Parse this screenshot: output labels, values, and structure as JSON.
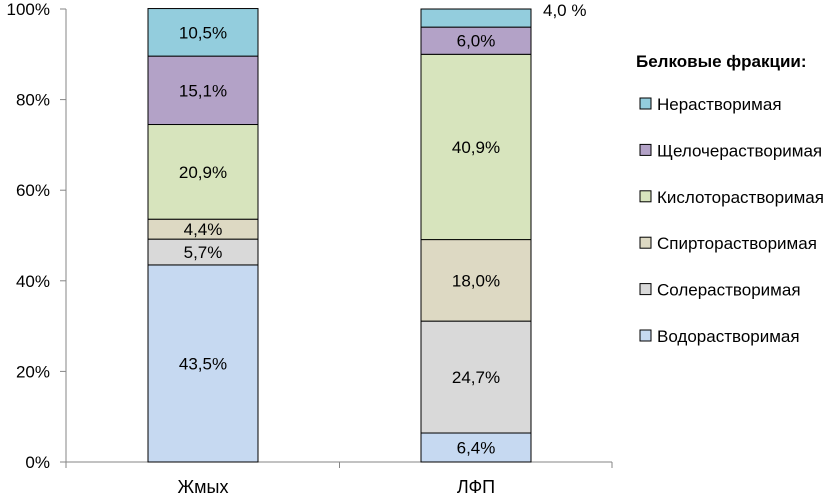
{
  "chart_data": {
    "type": "stacked-bar-100",
    "title": "",
    "xlabel": "",
    "ylabel": "",
    "ylim": [
      0,
      100
    ],
    "y_ticks": [
      "0%",
      "20%",
      "40%",
      "60%",
      "80%",
      "100%"
    ],
    "categories": [
      "Жмых",
      "ЛФП"
    ],
    "legend_title": "Белковые фракции:",
    "series": [
      {
        "name": "Водорастворимая",
        "values": [
          43.5,
          6.4
        ],
        "labels": [
          "43,5%",
          "6,4%"
        ],
        "color": "#c6d9f1"
      },
      {
        "name": "Солерастворимая",
        "values": [
          5.7,
          24.7
        ],
        "labels": [
          "5,7%",
          "24,7%"
        ],
        "color": "#d9d9d9"
      },
      {
        "name": "Спирторастворимая",
        "values": [
          4.4,
          18.0
        ],
        "labels": [
          "4,4%",
          "18,0%"
        ],
        "color": "#ddd9c3"
      },
      {
        "name": "Кислоторастворимая",
        "values": [
          20.9,
          40.9
        ],
        "labels": [
          "20,9%",
          "40,9%"
        ],
        "color": "#d7e4bd"
      },
      {
        "name": "Щелочерастворимая",
        "values": [
          15.1,
          6.0
        ],
        "labels": [
          "15,1%",
          "6,0%"
        ],
        "color": "#b3a2c7"
      },
      {
        "name": "Нерастворимая",
        "values": [
          10.5,
          4.0
        ],
        "labels": [
          "10,5%",
          "4,0 %"
        ],
        "color": "#93cddd"
      }
    ]
  }
}
